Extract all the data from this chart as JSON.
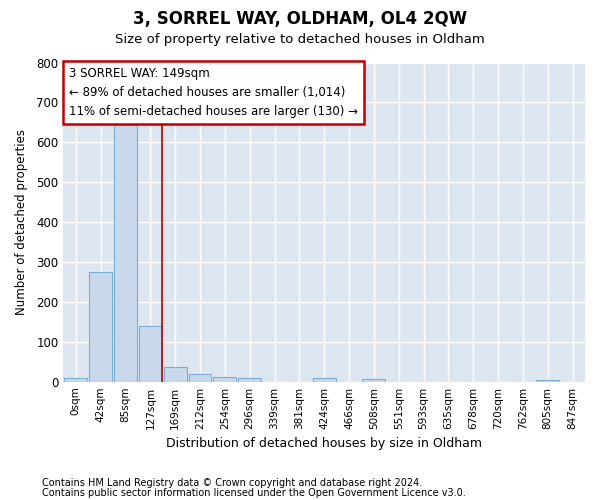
{
  "title": "3, SORREL WAY, OLDHAM, OL4 2QW",
  "subtitle": "Size of property relative to detached houses in Oldham",
  "xlabel": "Distribution of detached houses by size in Oldham",
  "ylabel": "Number of detached properties",
  "bar_color": "#c8d8ea",
  "bar_edge_color": "#7aafd4",
  "categories": [
    "0sqm",
    "42sqm",
    "85sqm",
    "127sqm",
    "169sqm",
    "212sqm",
    "254sqm",
    "296sqm",
    "339sqm",
    "381sqm",
    "424sqm",
    "466sqm",
    "508sqm",
    "551sqm",
    "593sqm",
    "635sqm",
    "678sqm",
    "720sqm",
    "762sqm",
    "805sqm",
    "847sqm"
  ],
  "values": [
    8,
    275,
    643,
    140,
    38,
    20,
    12,
    10,
    0,
    0,
    10,
    0,
    6,
    0,
    0,
    0,
    0,
    0,
    0,
    5,
    0
  ],
  "ylim": [
    0,
    800
  ],
  "yticks": [
    0,
    100,
    200,
    300,
    400,
    500,
    600,
    700,
    800
  ],
  "vline_x_index": 3,
  "vline_color": "#c00000",
  "annotation_line1": "3 SORREL WAY: 149sqm",
  "annotation_line2": "← 89% of detached houses are smaller (1,014)",
  "annotation_line3": "11% of semi-detached houses are larger (130) →",
  "annotation_box_color": "#ffffff",
  "annotation_box_edge": "#c00000",
  "footer1": "Contains HM Land Registry data © Crown copyright and database right 2024.",
  "footer2": "Contains public sector information licensed under the Open Government Licence v3.0.",
  "fig_bg_color": "#ffffff",
  "plot_bg_color": "#dde6f0",
  "grid_color": "#ffffff"
}
